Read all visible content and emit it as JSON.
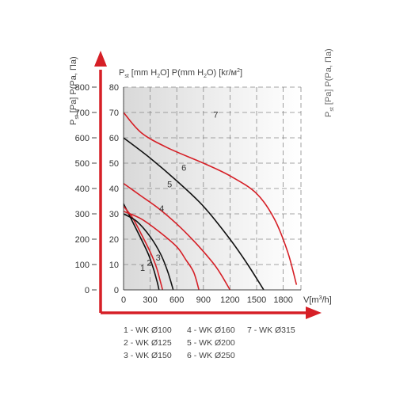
{
  "chart_data": {
    "type": "line",
    "left_axis_label_line1": "P",
    "left_axis_label_sub": "st",
    "left_axis_label_line2": "[Pa] P(Pa, Па)",
    "top_axis_label_line1": "P",
    "top_axis_label_sub": "st",
    "top_axis_label_line2": "[mm H",
    "top_axis_label_sub2": "2",
    "top_axis_label_line3": "O] P(mm H",
    "top_axis_label_sub3": "2",
    "top_axis_label_line4": "O) [kr/м",
    "top_axis_label_sup": "2",
    "top_axis_label_line5": "]",
    "right_axis_label_line1": "P",
    "right_axis_label_sub": "st",
    "right_axis_label_line2": "[Pa] P(Pa, Па)",
    "x_axis_label": "V[m",
    "x_axis_label_sup": "3",
    "x_axis_label_end": "/h]",
    "xlim": [
      0,
      2000
    ],
    "ylim_pa": [
      0,
      800
    ],
    "ylim_mm": [
      0,
      80
    ],
    "x_ticks": [
      "0",
      "300",
      "600",
      "900",
      "1200",
      "1500",
      "1800"
    ],
    "y_ticks_pa": [
      "0",
      "100",
      "200",
      "300",
      "400",
      "500",
      "600",
      "700",
      "800"
    ],
    "y_ticks_mm": [
      "0",
      "10",
      "20",
      "30",
      "40",
      "50",
      "60",
      "70",
      "80"
    ],
    "grid": true,
    "series": [
      {
        "name": "1 - WK Ø100",
        "label": "1",
        "color": "#111111",
        "points": [
          [
            0,
            340
          ],
          [
            100,
            270
          ],
          [
            200,
            200
          ],
          [
            280,
            140
          ],
          [
            340,
            80
          ],
          [
            380,
            30
          ],
          [
            400,
            0
          ]
        ]
      },
      {
        "name": "2 - WK Ø125",
        "label": "2",
        "color": "#d61f26",
        "points": [
          [
            0,
            330
          ],
          [
            100,
            285
          ],
          [
            200,
            220
          ],
          [
            300,
            150
          ],
          [
            370,
            90
          ],
          [
            410,
            40
          ],
          [
            440,
            0
          ]
        ]
      },
      {
        "name": "3 - WK Ø150",
        "label": "3",
        "color": "#111111",
        "points": [
          [
            0,
            300
          ],
          [
            150,
            270
          ],
          [
            300,
            210
          ],
          [
            420,
            140
          ],
          [
            500,
            70
          ],
          [
            560,
            0
          ]
        ]
      },
      {
        "name": "4 - WK Ø160",
        "label": "4",
        "color": "#d61f26",
        "points": [
          [
            0,
            310
          ],
          [
            200,
            280
          ],
          [
            400,
            230
          ],
          [
            600,
            170
          ],
          [
            700,
            120
          ],
          [
            790,
            70
          ],
          [
            850,
            0
          ]
        ]
      },
      {
        "name": "5 - WK Ø200",
        "label": "5",
        "color": "#d61f26",
        "points": [
          [
            0,
            420
          ],
          [
            200,
            370
          ],
          [
            400,
            320
          ],
          [
            600,
            260
          ],
          [
            800,
            190
          ],
          [
            1000,
            110
          ],
          [
            1100,
            60
          ],
          [
            1200,
            0
          ]
        ]
      },
      {
        "name": "6 - WK Ø250",
        "label": "6",
        "color": "#111111",
        "points": [
          [
            0,
            600
          ],
          [
            300,
            520
          ],
          [
            600,
            430
          ],
          [
            900,
            330
          ],
          [
            1200,
            200
          ],
          [
            1400,
            100
          ],
          [
            1580,
            0
          ]
        ]
      },
      {
        "name": "7 - WK Ø315",
        "label": "7",
        "color": "#d61f26",
        "points": [
          [
            0,
            700
          ],
          [
            200,
            620
          ],
          [
            500,
            560
          ],
          [
            900,
            500
          ],
          [
            1200,
            450
          ],
          [
            1500,
            380
          ],
          [
            1700,
            280
          ],
          [
            1850,
            150
          ],
          [
            1950,
            20
          ]
        ]
      }
    ],
    "legend_placement": "bottom"
  }
}
